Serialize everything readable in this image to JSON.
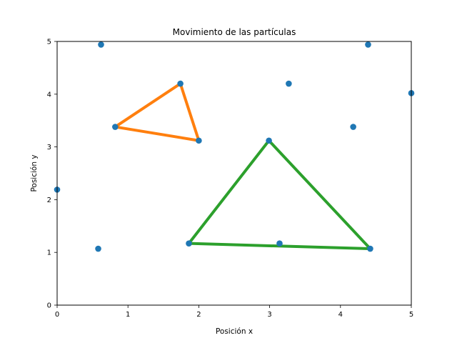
{
  "chart_data": {
    "type": "scatter",
    "title": "Movimiento de las partículas",
    "xlabel": "Posición x",
    "ylabel": "Posición y",
    "xlim": [
      0,
      5
    ],
    "ylim": [
      0,
      5
    ],
    "xticks": [
      "0",
      "1",
      "2",
      "3",
      "4",
      "5"
    ],
    "yticks": [
      "0",
      "1",
      "2",
      "3",
      "4",
      "5"
    ],
    "grid": false,
    "colors": {
      "points": "#1f77b4",
      "triangle_1": "#ff7f0e",
      "triangle_2": "#2ca02c"
    },
    "points": [
      {
        "x": 0.62,
        "y": 4.94
      },
      {
        "x": 4.39,
        "y": 4.94
      },
      {
        "x": 1.74,
        "y": 4.2
      },
      {
        "x": 3.27,
        "y": 4.2
      },
      {
        "x": 5.0,
        "y": 4.02
      },
      {
        "x": 0.82,
        "y": 3.38
      },
      {
        "x": 4.18,
        "y": 3.38
      },
      {
        "x": 2.0,
        "y": 3.12
      },
      {
        "x": 2.99,
        "y": 3.12
      },
      {
        "x": 0.0,
        "y": 2.19
      },
      {
        "x": 0.58,
        "y": 1.07
      },
      {
        "x": 1.86,
        "y": 1.17
      },
      {
        "x": 3.14,
        "y": 1.17
      },
      {
        "x": 4.42,
        "y": 1.07
      }
    ],
    "series": [
      {
        "vertices": [
          {
            "x": 1.74,
            "y": 4.2
          },
          {
            "x": 2.0,
            "y": 3.12
          },
          {
            "x": 0.82,
            "y": 3.38
          }
        ]
      },
      {
        "vertices": [
          {
            "x": 2.99,
            "y": 3.12
          },
          {
            "x": 4.42,
            "y": 1.07
          },
          {
            "x": 1.86,
            "y": 1.17
          }
        ]
      }
    ]
  }
}
